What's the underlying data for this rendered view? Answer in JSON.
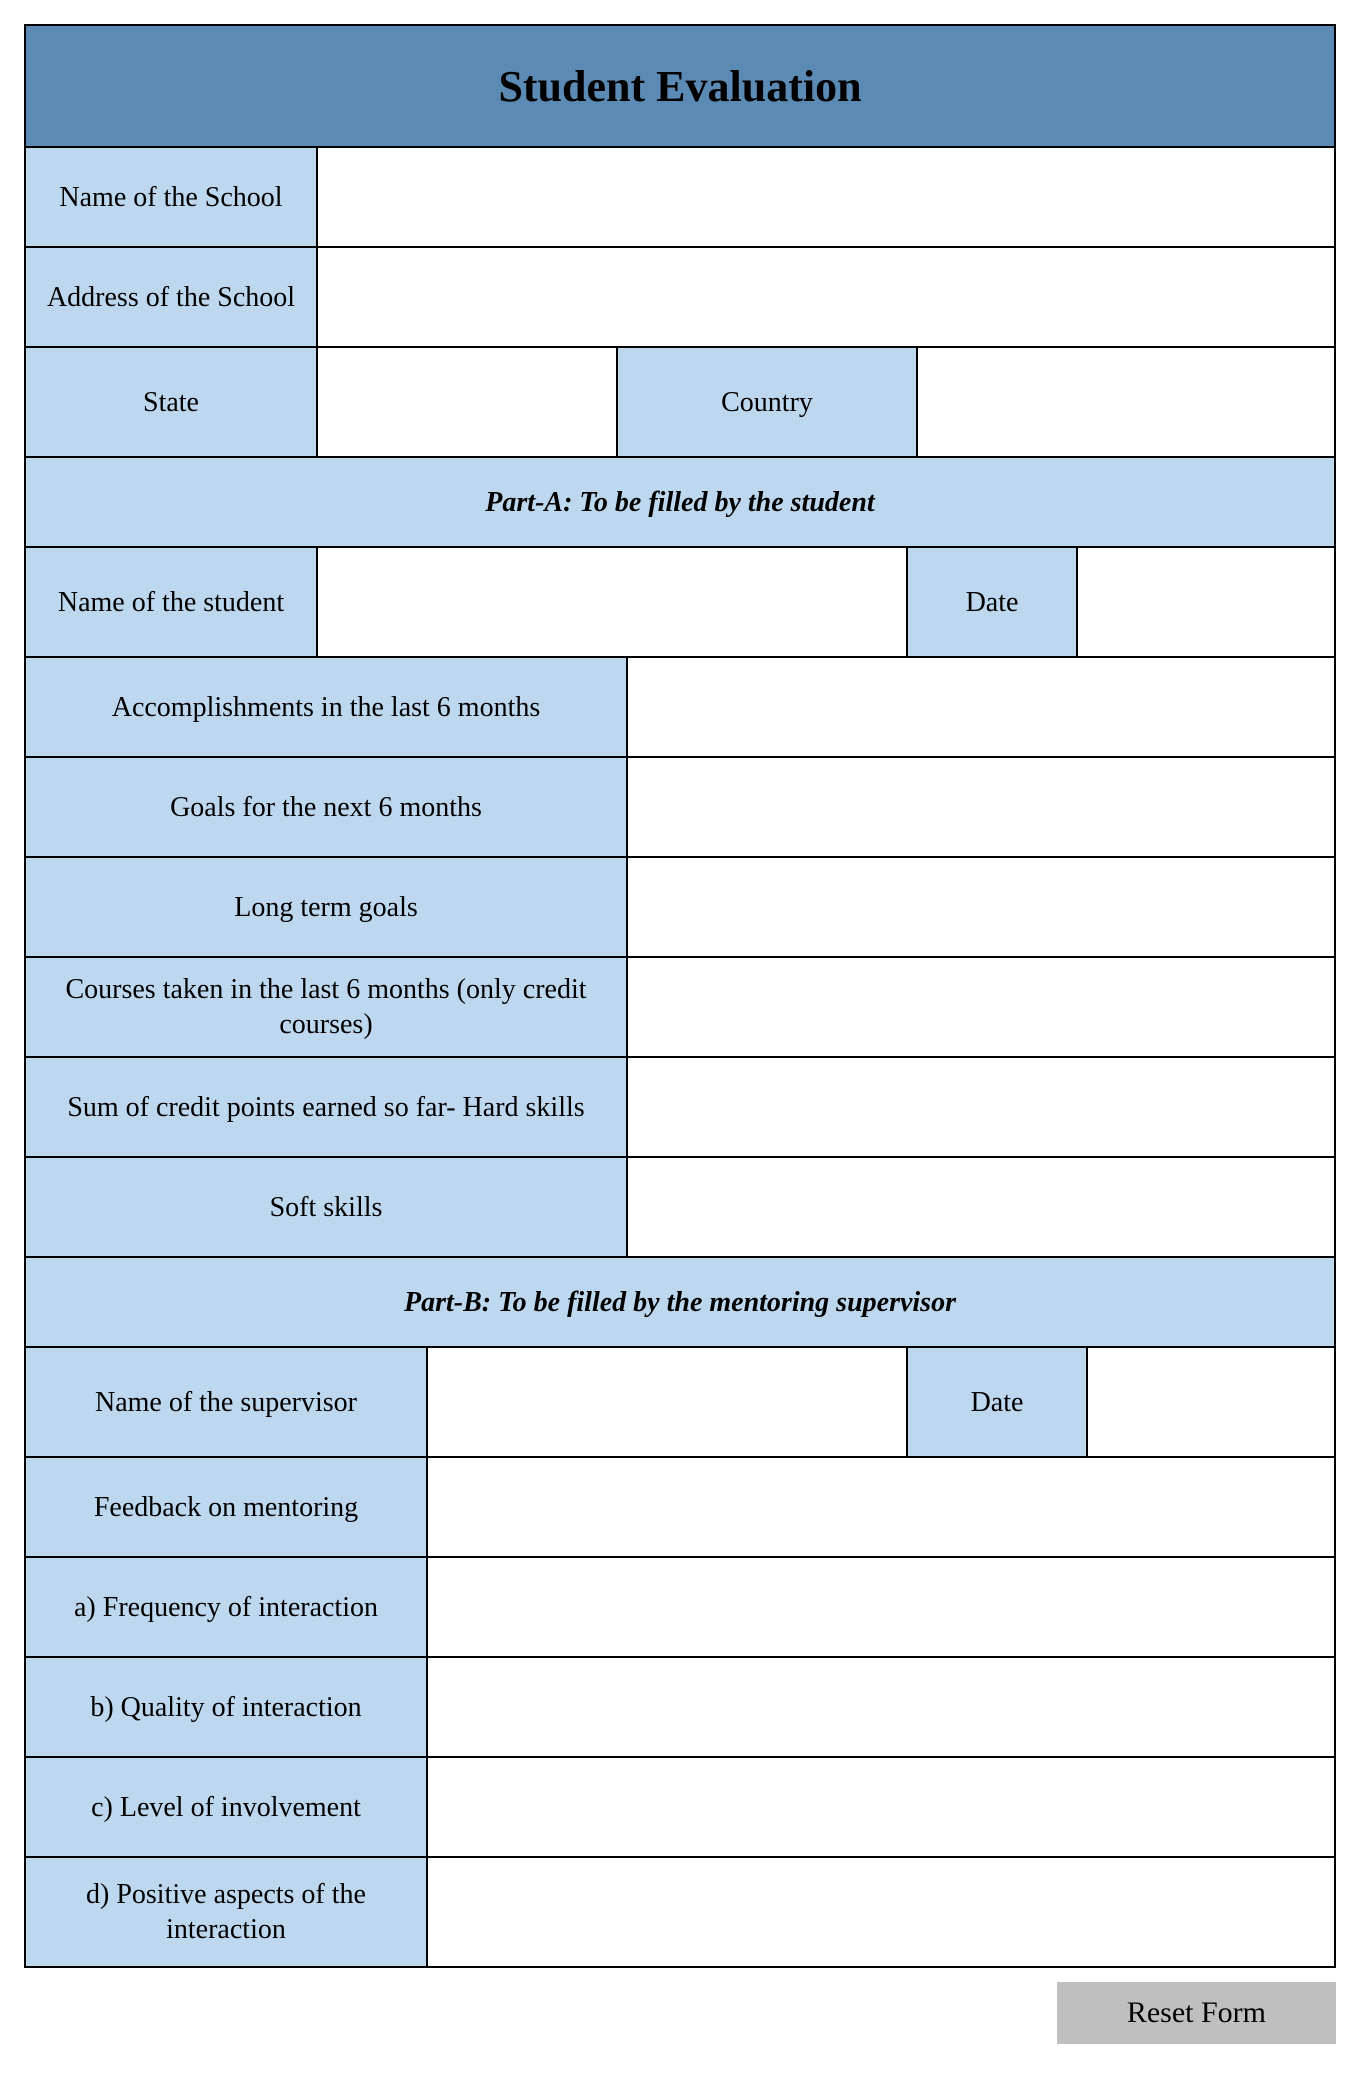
{
  "colors": {
    "header_bg": "#5b8bb4",
    "label_bg": "#bdd7ee",
    "input_bg": "#ffffff",
    "border": "#000000",
    "text": "#000000",
    "button_bg": "#bfbfbf"
  },
  "typography": {
    "family": "Times New Roman",
    "title_size_pt": 32,
    "label_size_pt": 21,
    "section_size_pt": 21
  },
  "title": "Student Evaluation",
  "header": {
    "school_name_label": "Name of the School",
    "school_address_label": "Address of the School",
    "state_label": "State",
    "country_label": "Country"
  },
  "part_a": {
    "heading": "Part-A: To be filled by the student",
    "student_name_label": "Name of the student",
    "date_label": "Date",
    "rows": [
      "Accomplishments in the last 6 months",
      "Goals for the next 6 months",
      "Long term goals",
      "Courses taken in the last 6 months (only credit courses)",
      "Sum of credit points earned so far- Hard skills",
      "Soft skills"
    ]
  },
  "part_b": {
    "heading": "Part-B: To be filled by the mentoring supervisor",
    "supervisor_name_label": "Name of the supervisor",
    "date_label": "Date",
    "feedback_label": "Feedback on mentoring",
    "rows": [
      "a)   Frequency of interaction",
      "b)   Quality of interaction",
      "c)   Level of involvement",
      "d)   Positive aspects of the interaction"
    ]
  },
  "reset_button": "Reset Form"
}
